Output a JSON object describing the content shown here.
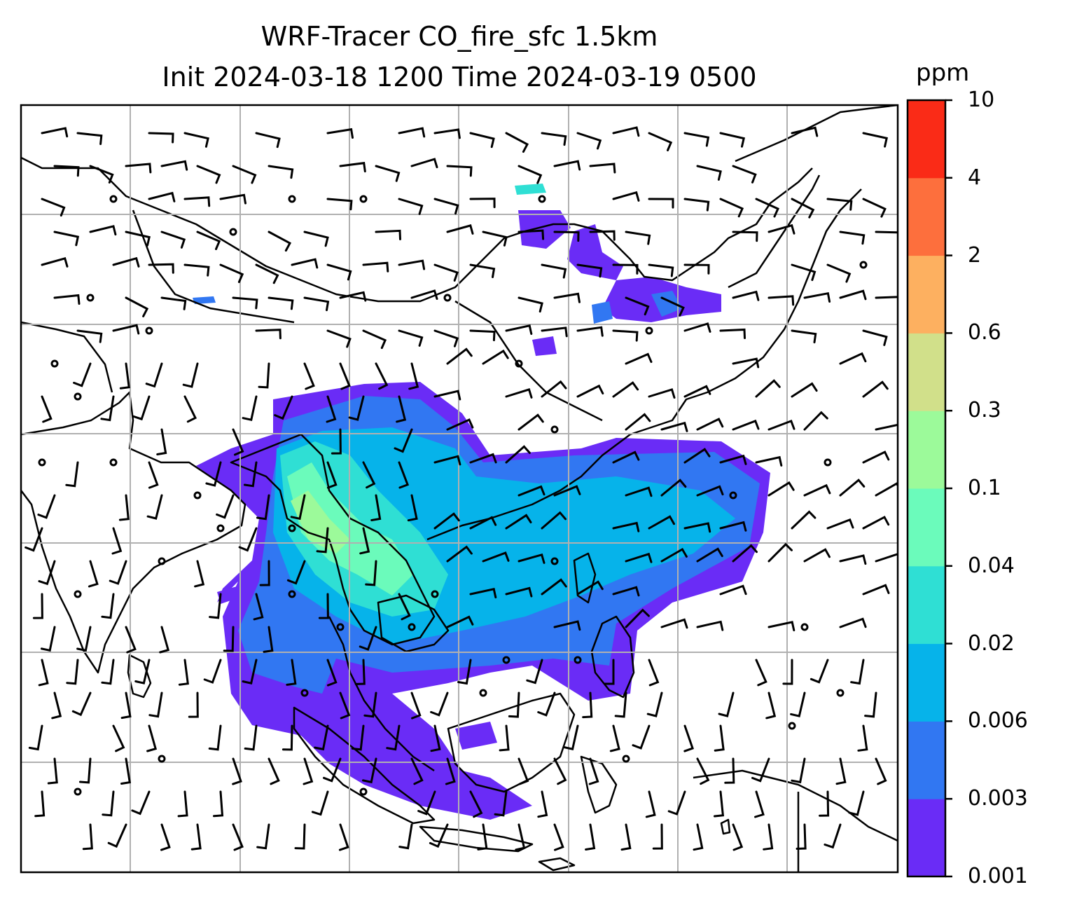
{
  "title": {
    "line1": "WRF-Tracer CO_fire_sfc 1.5km",
    "line2": "Init 2024-03-18 1200 Time 2024-03-19 0500"
  },
  "colorbar": {
    "unit": "ppm",
    "ticks": [
      "0.001",
      "0.003",
      "0.006",
      "0.02",
      "0.04",
      "0.1",
      "0.3",
      "0.6",
      "2",
      "4",
      "10"
    ],
    "colors": [
      "#6a2cf6",
      "#3177f2",
      "#06b3ea",
      "#2fdfd4",
      "#6bfbbb",
      "#9cfa9a",
      "#d1e08a",
      "#fdb060",
      "#fd6f3d",
      "#fa2b17"
    ]
  },
  "map": {
    "gridlines": true,
    "overlay": "wind barbs",
    "coastlines": true
  }
}
